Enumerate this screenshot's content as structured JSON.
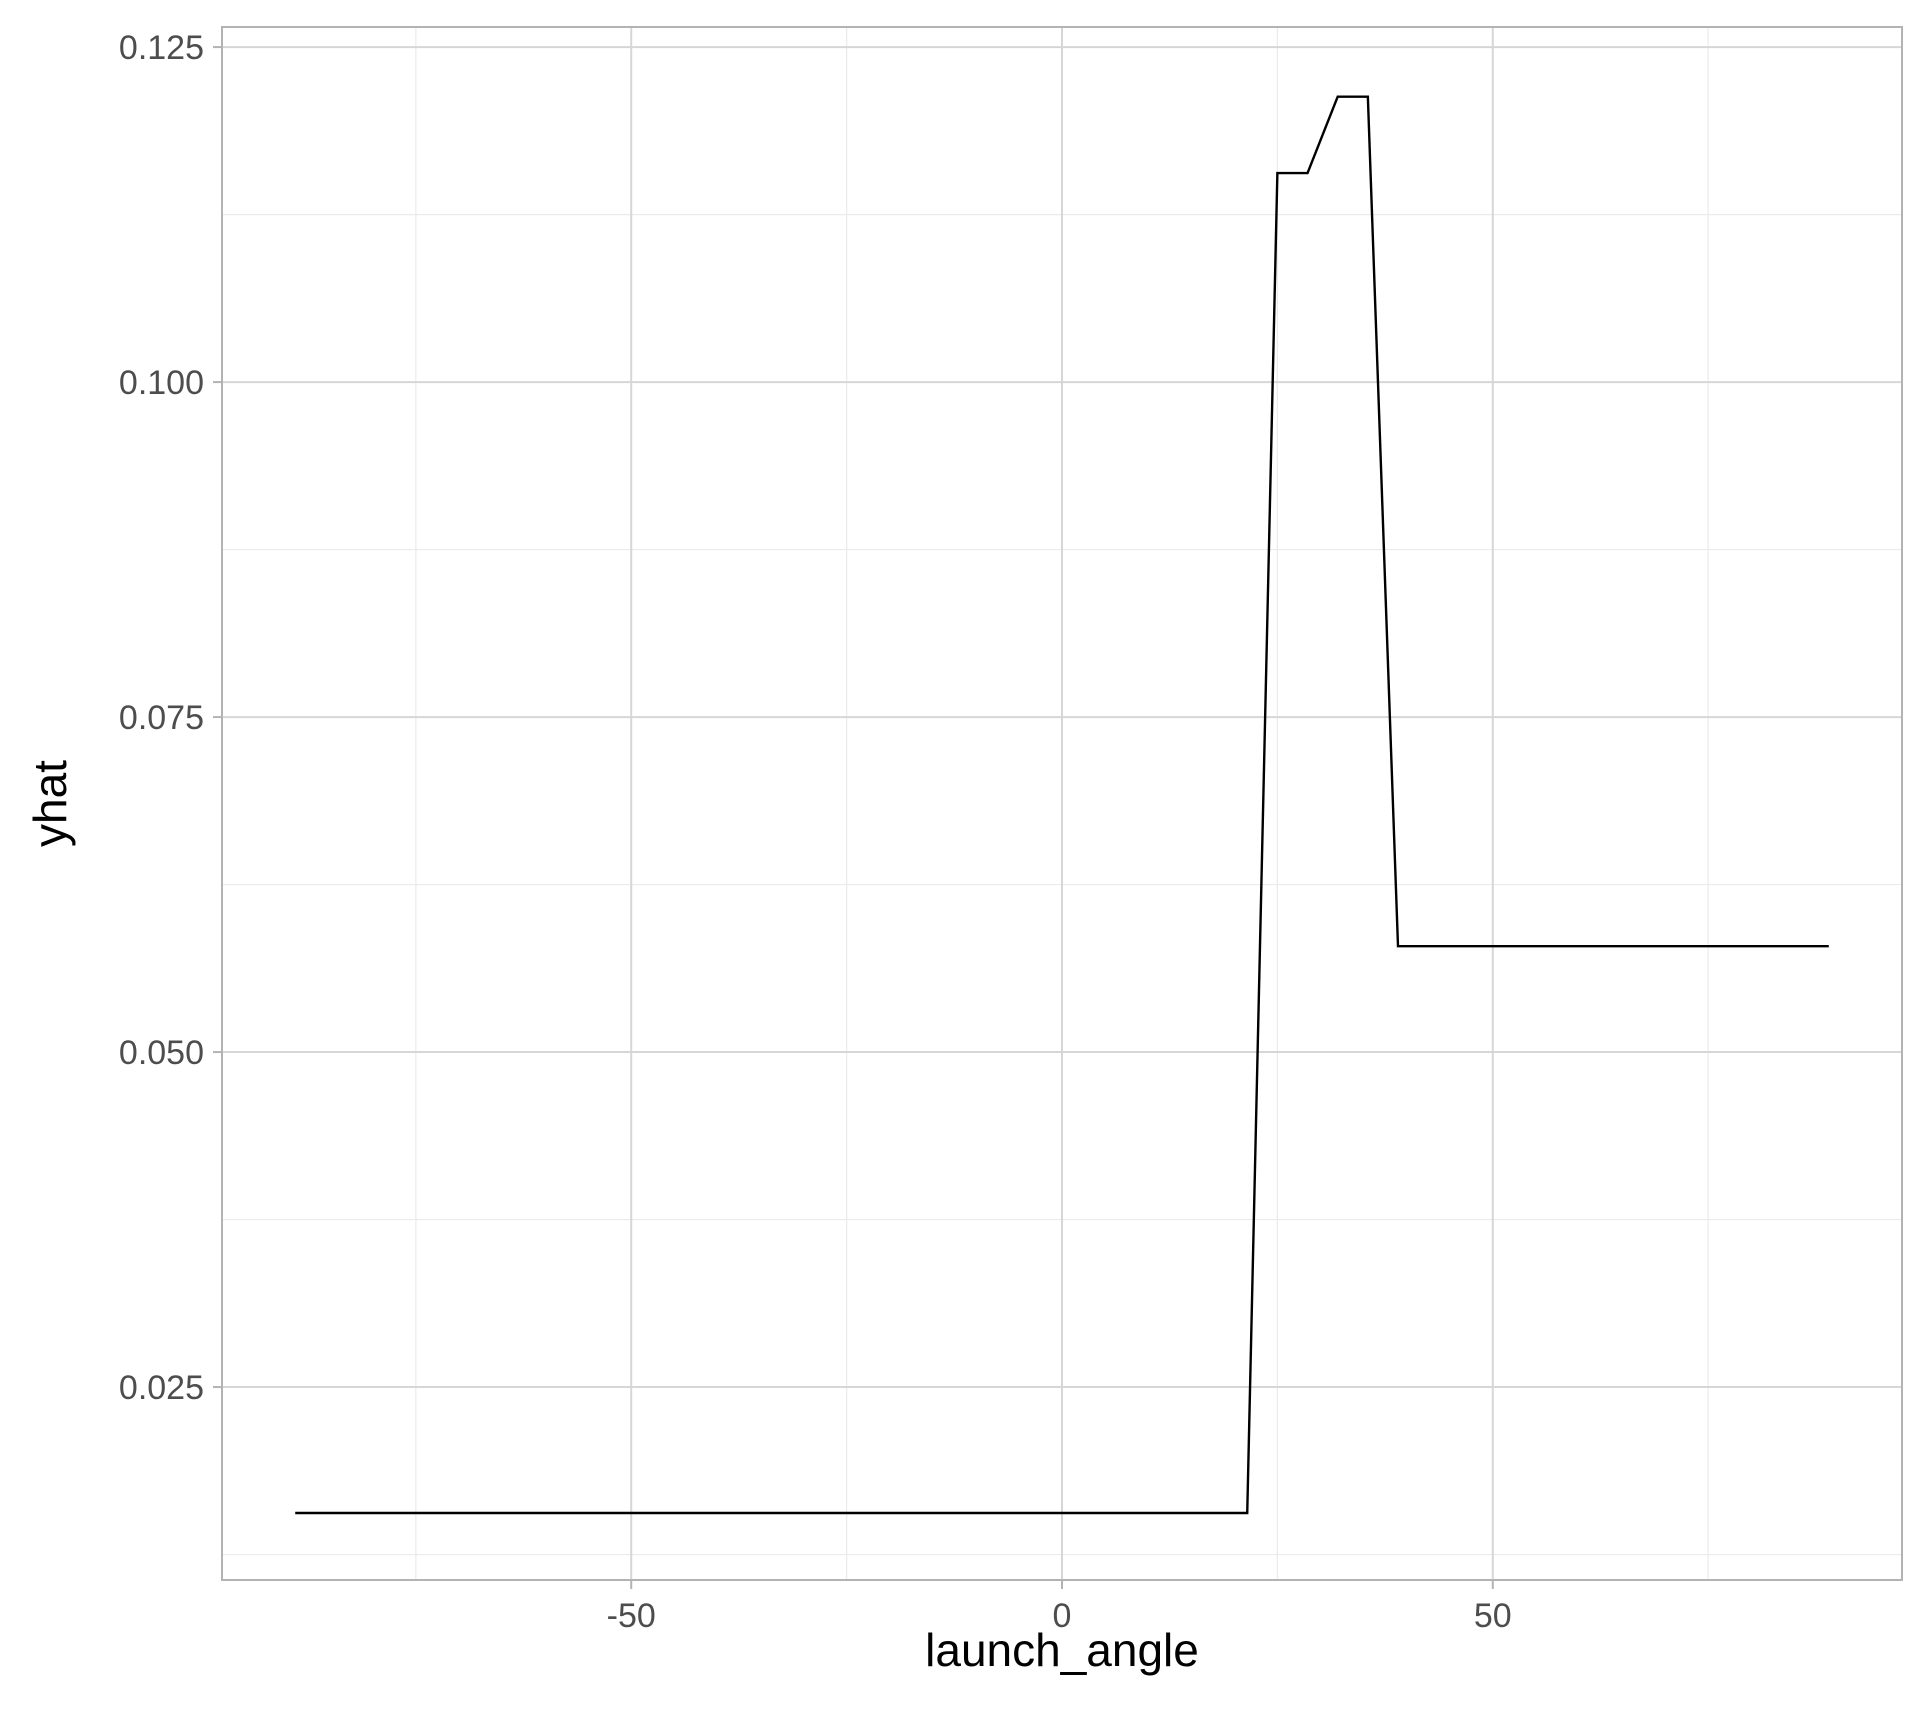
{
  "chart_data": {
    "type": "line",
    "title": "",
    "xlabel": "launch_angle",
    "ylabel": "yhat",
    "xlim": [
      -97.5,
      97.5
    ],
    "ylim": [
      0.0106,
      0.1265
    ],
    "x_ticks": [
      -50,
      0,
      50
    ],
    "x_tick_labels": [
      "-50",
      "0",
      "50"
    ],
    "x_minor_ticks": [
      -75,
      -25,
      25,
      75
    ],
    "y_ticks": [
      0.025,
      0.05,
      0.075,
      0.1,
      0.125
    ],
    "y_tick_labels": [
      "0.025",
      "0.050",
      "0.075",
      "0.100",
      "0.125"
    ],
    "y_minor_ticks": [
      0.0125,
      0.0375,
      0.0625,
      0.0875,
      0.1125
    ],
    "grid": true,
    "legend": "none",
    "series": [
      {
        "color": "#000000",
        "x": [
          -89,
          21.5,
          25,
          28.5,
          32,
          35.5,
          39,
          89
        ],
        "y": [
          0.0156,
          0.0156,
          0.1156,
          0.1156,
          0.1213,
          0.1213,
          0.0579,
          0.0579
        ]
      }
    ]
  },
  "style": {
    "panel_border": "#b3b3b3",
    "grid_major": "#d6d6d6",
    "grid_minor": "#ebebeb",
    "tick_color": "#4d4d4d"
  }
}
